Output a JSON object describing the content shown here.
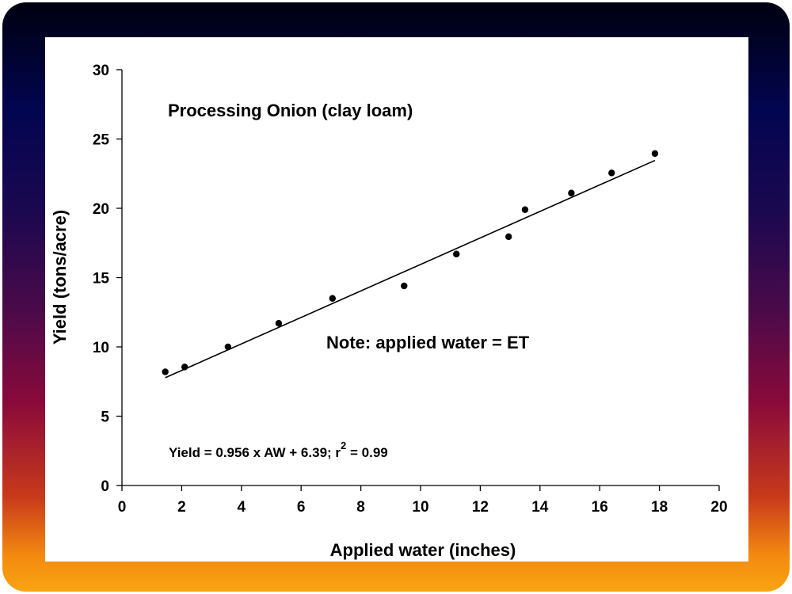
{
  "chart_data": {
    "type": "scatter",
    "title": "Processing Onion (clay loam)",
    "xlabel": "Applied water (inches)",
    "ylabel": "Yield (tons/acre)",
    "xlim": [
      0,
      20
    ],
    "ylim": [
      0,
      30
    ],
    "x_ticks": [
      0,
      2,
      4,
      6,
      8,
      10,
      12,
      14,
      16,
      18,
      20
    ],
    "y_ticks": [
      0,
      5,
      10,
      15,
      20,
      25,
      30
    ],
    "grid": false,
    "series": [
      {
        "x": [
          1.45,
          2.1,
          3.55,
          5.25,
          7.05,
          9.45,
          11.2,
          12.95,
          13.5,
          15.05,
          16.4,
          17.85
        ],
        "y": [
          8.2,
          8.55,
          10.0,
          11.7,
          13.5,
          14.4,
          16.7,
          17.95,
          19.9,
          21.1,
          22.55,
          23.95
        ]
      }
    ],
    "fit_line": {
      "slope": 0.956,
      "intercept": 6.39,
      "x_range": [
        1.45,
        17.85
      ]
    },
    "annotations": {
      "note": "Note: applied water = ET",
      "equation_main": "Yield = 0.956 x AW + 6.39; r",
      "equation_sup": "2",
      "equation_tail": " = 0.99"
    },
    "colors": {
      "points": "#000000",
      "line": "#000000",
      "frame_top": "#000010",
      "frame_bottom": "#f9a410"
    }
  }
}
